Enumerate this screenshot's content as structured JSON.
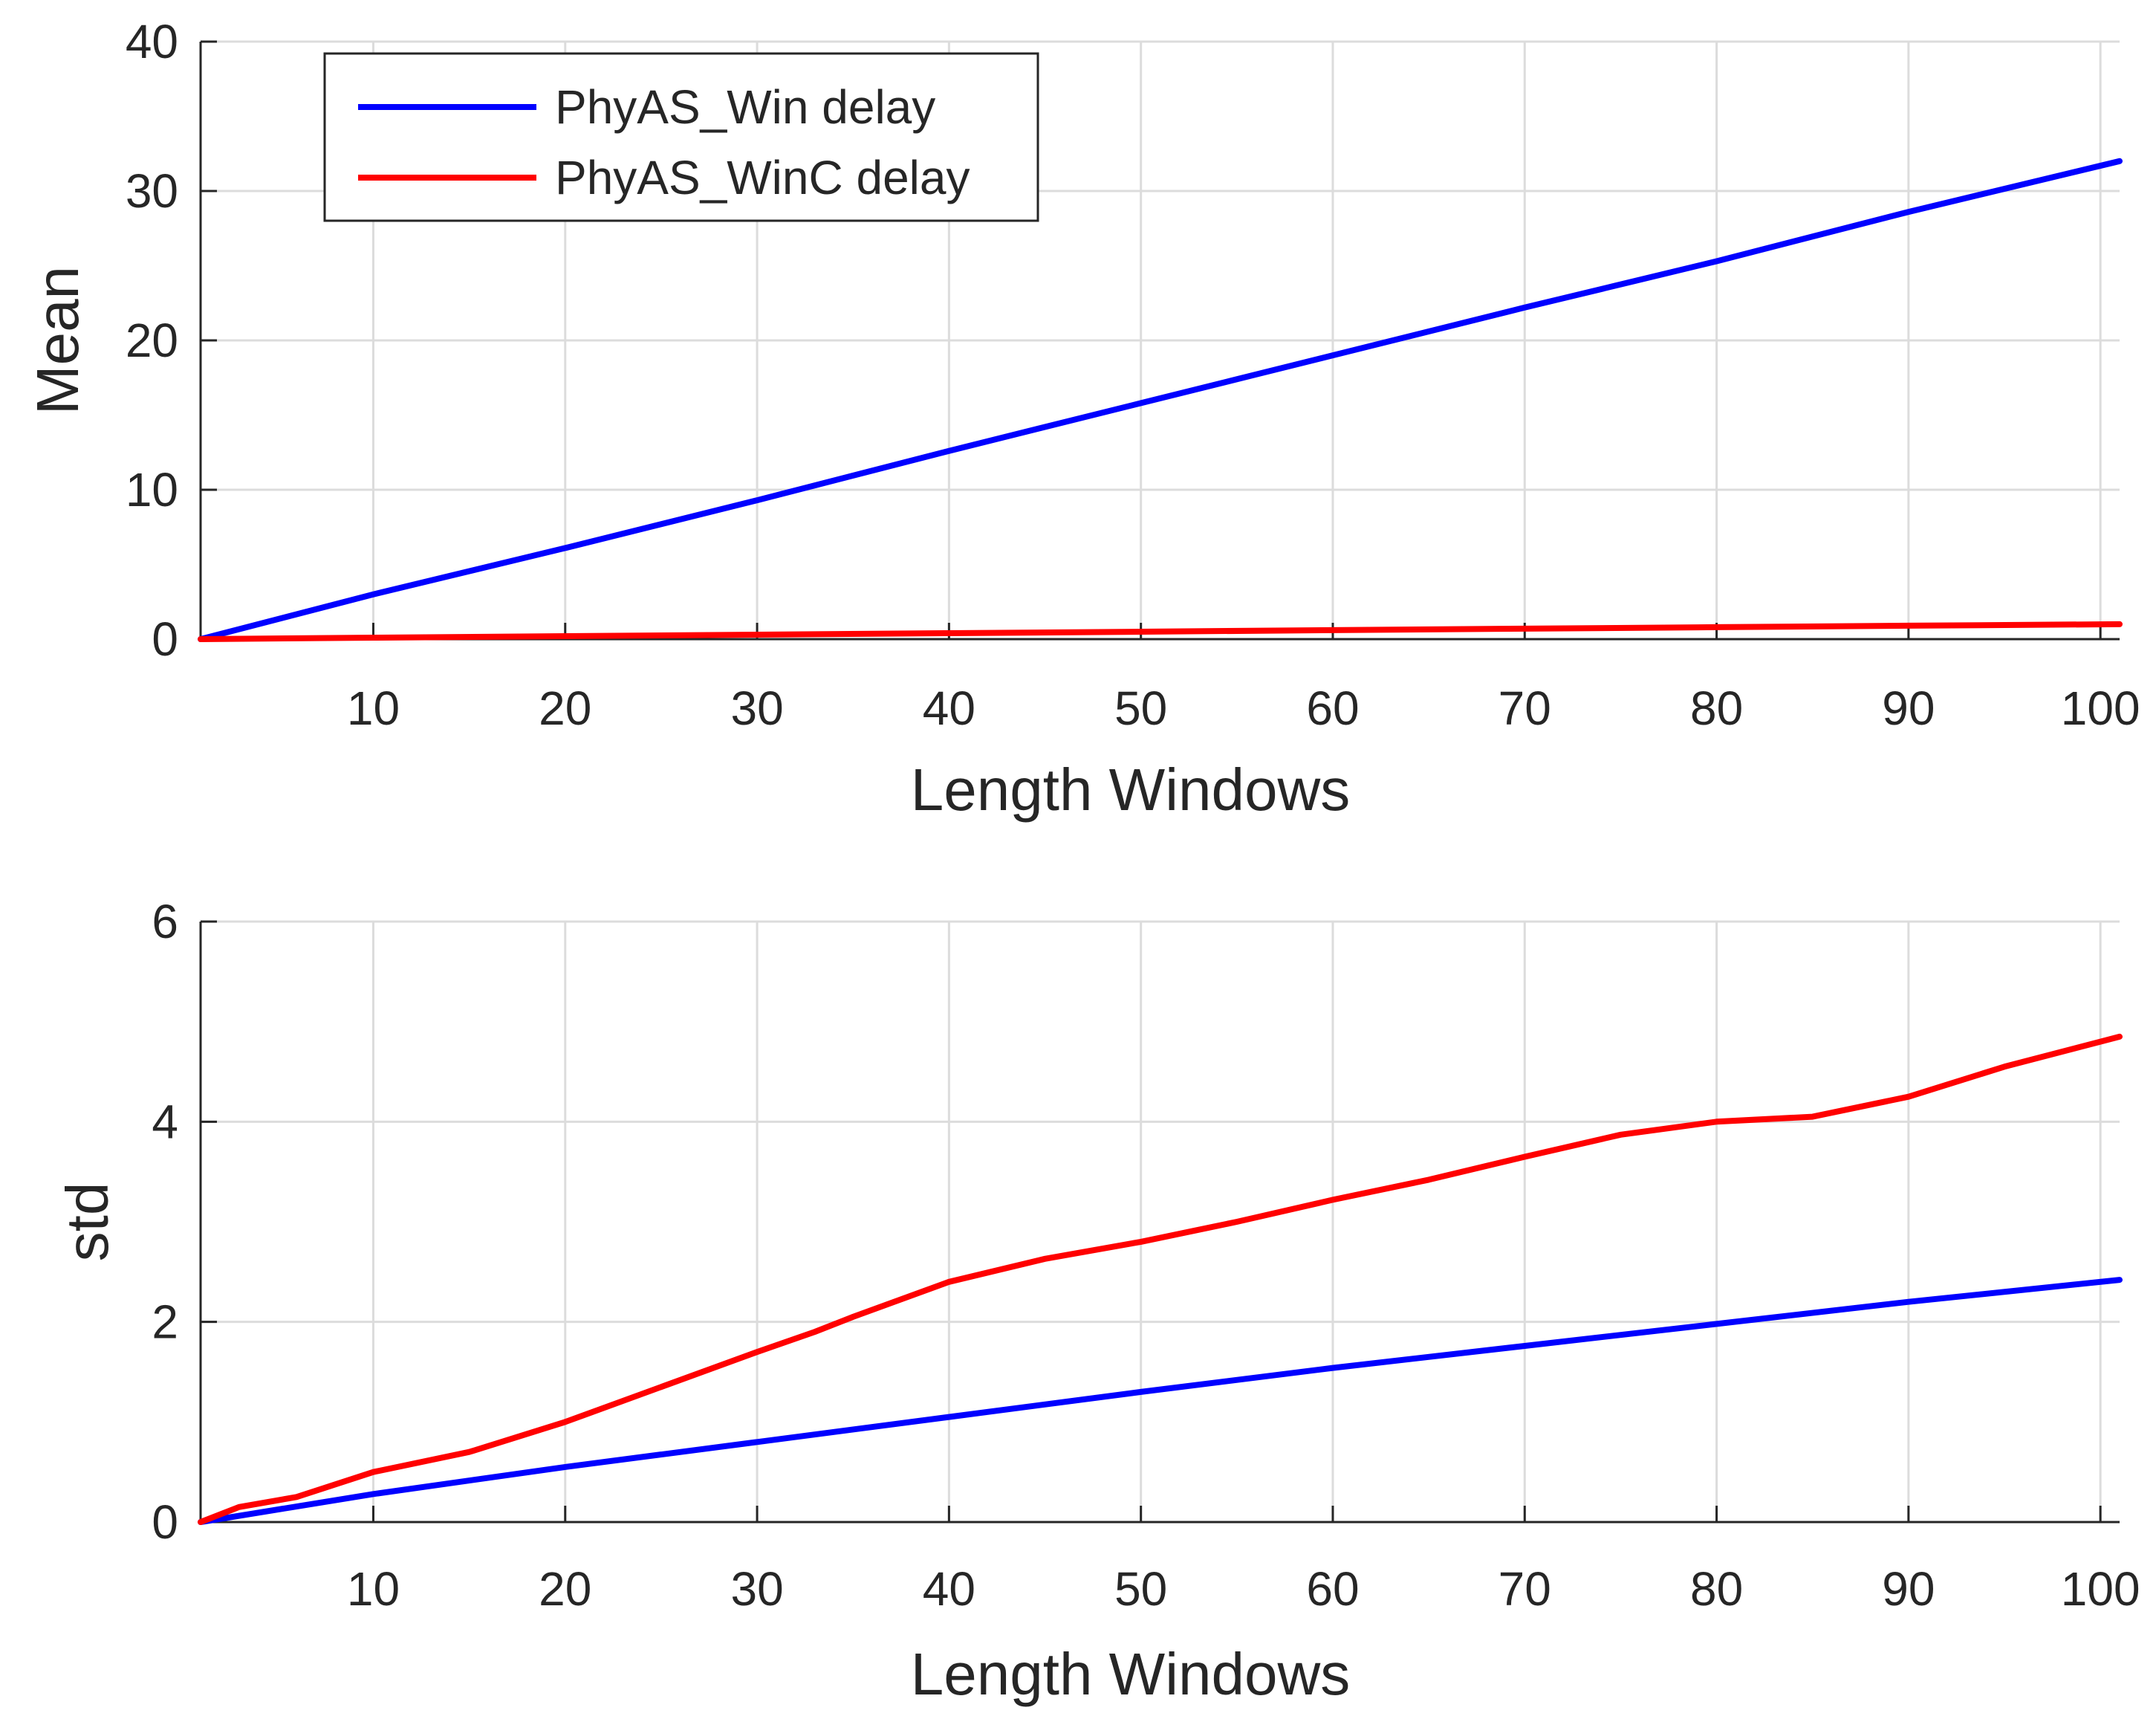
{
  "chart_data": [
    {
      "type": "line",
      "xlabel": "Length Windows",
      "ylabel": "Mean",
      "xlim": [
        1,
        101
      ],
      "ylim": [
        0,
        40
      ],
      "xticks": [
        10,
        20,
        30,
        40,
        50,
        60,
        70,
        80,
        90,
        100
      ],
      "yticks": [
        0,
        10,
        20,
        30,
        40
      ],
      "grid": true,
      "legend_position": "top-left",
      "series": [
        {
          "name": "PhyAS_Win delay",
          "color": "#0000ff",
          "x": [
            1,
            10,
            20,
            30,
            40,
            50,
            60,
            70,
            80,
            90,
            101
          ],
          "y": [
            0,
            3,
            6.1,
            9.3,
            12.6,
            15.8,
            19,
            22.2,
            25.3,
            28.6,
            32
          ]
        },
        {
          "name": "PhyAS_WinC delay",
          "color": "#ff0000",
          "x": [
            1,
            10,
            20,
            30,
            40,
            50,
            60,
            70,
            80,
            90,
            101
          ],
          "y": [
            0,
            0.1,
            0.2,
            0.3,
            0.4,
            0.5,
            0.6,
            0.7,
            0.8,
            0.9,
            1
          ]
        }
      ]
    },
    {
      "type": "line",
      "xlabel": "Length Windows",
      "ylabel": "std",
      "xlim": [
        1,
        101
      ],
      "ylim": [
        0,
        6
      ],
      "xticks": [
        10,
        20,
        30,
        40,
        50,
        60,
        70,
        80,
        90,
        100
      ],
      "yticks": [
        0,
        2,
        4,
        6
      ],
      "grid": true,
      "series": [
        {
          "color": "#0000ff",
          "x": [
            1,
            10,
            20,
            30,
            40,
            50,
            60,
            70,
            80,
            90,
            101
          ],
          "y": [
            0,
            0.28,
            0.55,
            0.8,
            1.05,
            1.3,
            1.54,
            1.76,
            1.98,
            2.2,
            2.42
          ]
        },
        {
          "color": "#ff0000",
          "x": [
            1,
            3,
            6,
            10,
            15,
            20,
            25,
            30,
            33,
            35,
            40,
            45,
            50,
            55,
            60,
            65,
            70,
            75,
            80,
            85,
            90,
            95,
            101
          ],
          "y": [
            0,
            0.15,
            0.25,
            0.5,
            0.7,
            1.0,
            1.35,
            1.7,
            1.9,
            2.05,
            2.4,
            2.63,
            2.8,
            3.0,
            3.22,
            3.42,
            3.65,
            3.87,
            4.0,
            4.05,
            4.25,
            4.55,
            4.85
          ]
        }
      ]
    }
  ]
}
